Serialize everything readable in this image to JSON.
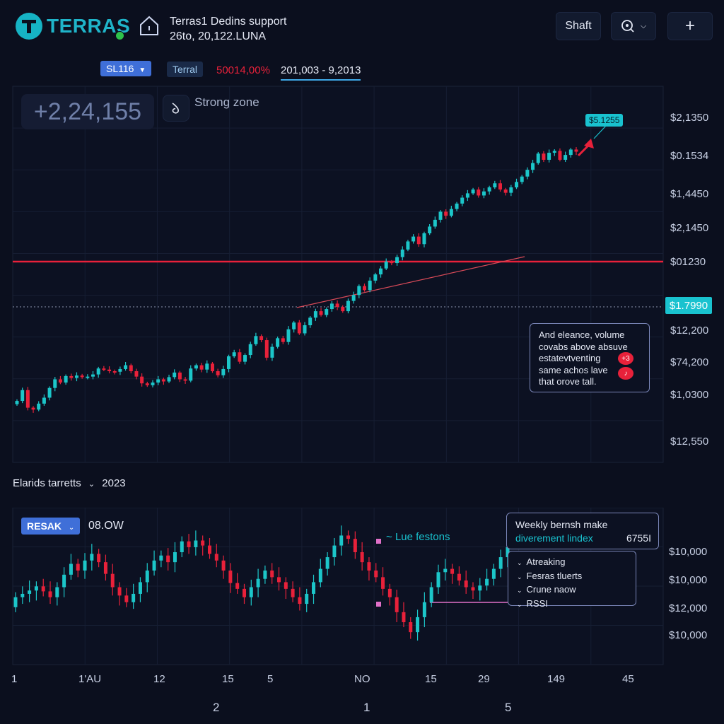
{
  "header": {
    "brand": "TERRAS",
    "title_line1": "Terras1 Dedins support",
    "title_line2": "26to, 20,122.LUNA",
    "shaft_button": "Shaft",
    "add_button": "+"
  },
  "toolbar": {
    "symbol_select": "SL116",
    "ticker": "Terral",
    "change_text": "50014,00%",
    "range_text": "201,003 - 9,2013"
  },
  "main_chart": {
    "big_value": "+2,24,155",
    "zone_label": "Strong zone",
    "target_badge": "$5.1255",
    "current_price_badge": "$1.7990",
    "price_axis": [
      "$2,1350",
      "$0.1534",
      "$1,4450",
      "$2,1450",
      "$01230",
      "$12,200",
      "$74,200",
      "$1,0300",
      "$12,550"
    ],
    "annotation": [
      "And eleance, volume",
      "covabs above absuve",
      "estatevtventing",
      "same achos lave",
      "that orove tall."
    ],
    "annotation_badges": [
      "+3",
      "♪"
    ]
  },
  "chart_data": [
    {
      "type": "candlestick",
      "title": "",
      "price_levels": {
        "resistance_line_y_axis_label": "$01230",
        "current_price": "$1.7990"
      },
      "closes": [
        480,
        520,
        455,
        448,
        470,
        492,
        528,
        560,
        548,
        572,
        565,
        574,
        568,
        570,
        578,
        600,
        596,
        590,
        588,
        598,
        612,
        590,
        570,
        545,
        538,
        548,
        560,
        552,
        568,
        585,
        560,
        555,
        600,
        612,
        596,
        618,
        590,
        575,
        598,
        645,
        660,
        625,
        650,
        690,
        720,
        705,
        640,
        680,
        712,
        698,
        745,
        770,
        730,
        760,
        788,
        812,
        798,
        820,
        840,
        828,
        812,
        850,
        872,
        905,
        890,
        925,
        948,
        970,
        995,
        990,
        1012,
        1040,
        1070,
        1088,
        1060,
        1100,
        1125,
        1150,
        1180,
        1165,
        1190,
        1210,
        1232,
        1248,
        1262,
        1240,
        1255,
        1270,
        1285,
        1262,
        1250,
        1270,
        1290,
        1310,
        1335,
        1360,
        1395,
        1372,
        1398,
        1405,
        1372,
        1390,
        1410,
        1402
      ]
    },
    {
      "type": "candlestick",
      "title": "Elarids tarretts",
      "dropdown": "RESAK",
      "value_label": "08.OW",
      "closes": [
        118,
        122,
        126,
        131,
        125,
        118,
        130,
        145,
        158,
        150,
        162,
        170,
        160,
        146,
        130,
        120,
        112,
        122,
        136,
        150,
        162,
        168,
        160,
        172,
        185,
        178,
        186,
        180,
        170,
        162,
        150,
        135,
        128,
        118,
        130,
        140,
        150,
        142,
        136,
        128,
        118,
        110,
        122,
        136,
        152,
        166,
        180,
        192,
        188,
        172,
        160,
        150,
        142,
        128,
        118,
        100,
        88,
        76,
        94,
        112,
        130,
        148,
        152,
        146,
        138,
        130,
        126,
        132,
        140,
        152,
        166,
        178
      ]
    }
  ],
  "lower_panel": {
    "title": "Elarids tarretts",
    "title_year": "2023",
    "dropdown": "RESAK",
    "value_label": "08.OW",
    "series_label": "Lue festons",
    "info_box_title": "Weekly bernsh make",
    "info_box_sub": "diverement lindex",
    "info_box_value": "6755I",
    "menu_items": [
      "Atreaking",
      "Fesras tluerts",
      "Crune naow",
      "RSSI"
    ],
    "price_axis": [
      "$10,000",
      "$10,000",
      "$12,000",
      "$10,000"
    ]
  },
  "x_axis": {
    "labels": [
      "1",
      "1'AU",
      "12",
      "15",
      "5",
      "NO",
      "15",
      "29",
      "149",
      "45"
    ],
    "sub_labels": [
      "2",
      "1",
      "5"
    ]
  },
  "colors": {
    "bull": "#1cc6c9",
    "bear": "#e8213a",
    "resistance": "#e8213a",
    "accent": "#3fa9e8",
    "badge": "#19c2cf"
  }
}
